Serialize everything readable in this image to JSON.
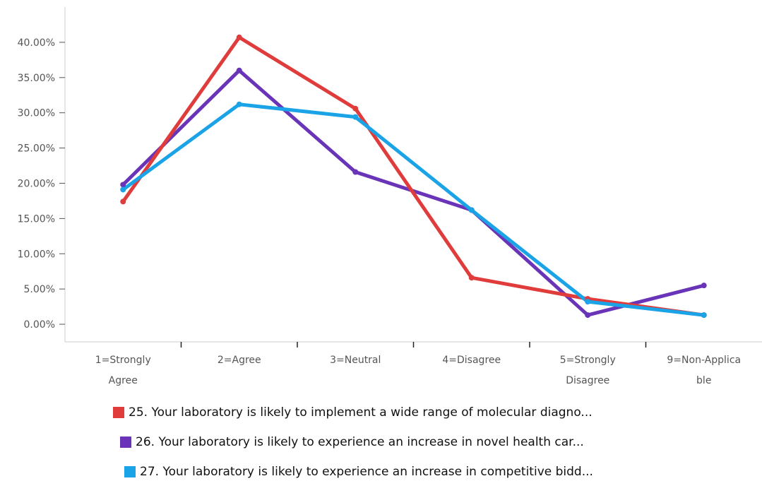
{
  "chart_data": {
    "type": "line",
    "categories": [
      [
        "1=Strongly",
        "Agree"
      ],
      [
        "2=Agree"
      ],
      [
        "3=Neutral"
      ],
      [
        "4=Disagree"
      ],
      [
        "5=Strongly",
        "Disagree"
      ],
      [
        "9=Non-Applica",
        "ble"
      ]
    ],
    "ylim": [
      -2.5,
      45
    ],
    "yticks": [
      0,
      5,
      10,
      15,
      20,
      25,
      30,
      35,
      40
    ],
    "ytick_labels": [
      "0.00%",
      "5.00%",
      "10.00%",
      "15.00%",
      "20.00%",
      "25.00%",
      "30.00%",
      "35.00%",
      "40.00%"
    ],
    "grid": false,
    "legend_position": "bottom",
    "series": [
      {
        "name": "25. Your laboratory is likely to implement a wide range of molecular diagno...",
        "color": "#e03c3c",
        "values": [
          17.4,
          40.7,
          30.6,
          6.6,
          3.6,
          1.3
        ]
      },
      {
        "name": "26. Your laboratory is likely to experience an increase in novel health car...",
        "color": "#6a34b8",
        "values": [
          19.8,
          36.0,
          21.6,
          16.2,
          1.3,
          5.5
        ]
      },
      {
        "name": "27. Your laboratory is likely to experience an increase in competitive bidd...",
        "color": "#1aa3e6",
        "values": [
          19.1,
          31.2,
          29.4,
          16.2,
          3.2,
          1.3
        ]
      }
    ]
  }
}
